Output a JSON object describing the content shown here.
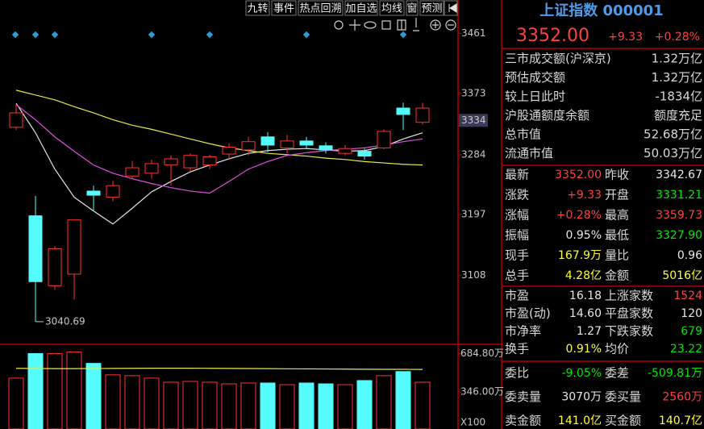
{
  "toolbar": {
    "buttons": [
      "九转",
      "事件",
      "热点回溯",
      "加自选",
      "均线",
      "窗",
      "预测"
    ]
  },
  "chart_data": {
    "type": "candlestick",
    "open": [
      3324,
      3195,
      3093,
      3110,
      3231,
      3222,
      3253,
      3257,
      3269,
      3265,
      3269,
      3285,
      3291,
      3310,
      3294,
      3304,
      3297,
      3286,
      3289,
      3294,
      3352,
      3331.21
    ],
    "high": [
      3357,
      3224,
      3151,
      3189,
      3239,
      3246,
      3275,
      3277,
      3283,
      3286,
      3284,
      3301,
      3310,
      3317,
      3313,
      3310,
      3302,
      3298,
      3293,
      3321,
      3360,
      3359.73
    ],
    "low": [
      3320,
      3040.69,
      3087,
      3073,
      3202,
      3216,
      3249,
      3249,
      3239,
      3260,
      3263,
      3278,
      3283,
      3288,
      3286,
      3292,
      3286,
      3283,
      3277,
      3292,
      3320,
      3327.9
    ],
    "close": [
      3345,
      3099,
      3147,
      3189,
      3225,
      3239,
      3265,
      3271,
      3278,
      3283,
      3281,
      3295,
      3303,
      3298,
      3304,
      3298,
      3291,
      3293,
      3282,
      3318,
      3342.67,
      3352.0
    ],
    "up_color": "#ff3232",
    "down_color": "#54fcfc",
    "ylim": [
      3010,
      3486
    ],
    "yticks": [
      3108,
      3197,
      3284,
      3373,
      3461
    ],
    "current_marker": 3334,
    "ma_series": [
      {
        "color": "#e8e8e8",
        "values": [
          3359,
          3316,
          3263,
          3222,
          3202,
          3183,
          3206,
          3230,
          3245,
          3259,
          3269,
          3278,
          3286,
          3290,
          3292,
          3293,
          3291,
          3289,
          3290,
          3296,
          3307,
          3316
        ]
      },
      {
        "color": "#e8e850",
        "values": [
          3378,
          3371,
          3364,
          3354,
          3345,
          3335,
          3327,
          3321,
          3314,
          3307,
          3300,
          3294,
          3290,
          3286,
          3284,
          3282,
          3279,
          3277,
          3274,
          3272,
          3270,
          3269
        ]
      },
      {
        "color": "#e050e0",
        "values": [
          3357,
          3335,
          3310,
          3289,
          3269,
          3257,
          3249,
          3242,
          3236,
          3231,
          3228,
          3245,
          3263,
          3274,
          3283,
          3287,
          3290,
          3292,
          3294,
          3298,
          3303,
          3307
        ]
      }
    ],
    "volume": {
      "ylim": [
        20,
        745
      ],
      "yticks": [
        {
          "value": 346.0,
          "label": "346.00万"
        },
        {
          "value": 684.8,
          "label": "684.80万"
        }
      ],
      "unit_label": "X100",
      "values": [
        468.5,
        684.8,
        684.8,
        699.2,
        598.3,
        497.4,
        490.2,
        468.5,
        432.5,
        439.7,
        432.5,
        418.1,
        425.3,
        425.3,
        410.9,
        425.3,
        418.1,
        410.9,
        446.9,
        490.2,
        526.2,
        432.5
      ],
      "ma_color": "#e8e850",
      "ma_values": [
        555,
        553,
        552,
        552,
        553,
        554,
        555,
        556,
        556,
        556,
        555,
        554,
        553,
        552,
        551,
        550,
        549,
        548,
        547,
        546,
        546,
        545
      ]
    }
  },
  "quote_panel": {
    "title": "上证指数 000001",
    "price": "3352.00",
    "change": "+9.33",
    "change_pct": "+0.28%",
    "summary": [
      {
        "label": "三市成交额(沪深京)",
        "value": "1.32万亿",
        "color": "#e8e8e8"
      },
      {
        "label": "预估成交额",
        "value": "1.32万亿",
        "color": "#e8e8e8"
      },
      {
        "label": "较上日此时",
        "value": "-1834亿",
        "color": "#00e600"
      },
      {
        "label": "沪股通额度余额",
        "value": "额度充足",
        "color": "#e8e8e8"
      },
      {
        "label": "总市值",
        "value": "52.68万亿",
        "color": "#e8e8e8"
      },
      {
        "label": "流通市值",
        "value": "50.03万亿",
        "color": "#e8e8e8"
      }
    ],
    "stats": [
      [
        [
          {
            "label": "最新",
            "value": "3352.00",
            "color": "#ff4040"
          },
          {
            "label": "昨收",
            "value": "3342.67",
            "color": "#e8e8e8"
          }
        ],
        [
          {
            "label": "涨跌",
            "value": "+9.33",
            "color": "#ff4040"
          },
          {
            "label": "开盘",
            "value": "3331.21",
            "color": "#00e600"
          }
        ],
        [
          {
            "label": "涨幅",
            "value": "+0.28%",
            "color": "#ff4040"
          },
          {
            "label": "最高",
            "value": "3359.73",
            "color": "#ff4040"
          }
        ],
        [
          {
            "label": "振幅",
            "value": "0.95%",
            "color": "#e8e8e8"
          },
          {
            "label": "最低",
            "value": "3327.90",
            "color": "#00e600"
          }
        ],
        [
          {
            "label": "现手",
            "value": "167.9万",
            "color": "#ffff40"
          },
          {
            "label": "量比",
            "value": "0.96",
            "color": "#e8e8e8"
          }
        ],
        [
          {
            "label": "总手",
            "value": "4.28亿",
            "color": "#ffff40"
          },
          {
            "label": "金额",
            "value": "5016亿",
            "color": "#ffff40"
          }
        ]
      ],
      [
        [
          {
            "label": "市盈",
            "value": "16.18",
            "color": "#e8e8e8"
          },
          {
            "label": "上涨家数",
            "value": "1524",
            "color": "#ff4040"
          }
        ],
        [
          {
            "label": "市盈(动)",
            "value": "14.60",
            "color": "#e8e8e8"
          },
          {
            "label": "平盘家数",
            "value": "120",
            "color": "#e8e8e8"
          }
        ],
        [
          {
            "label": "市净率",
            "value": "1.27",
            "color": "#e8e8e8"
          },
          {
            "label": "下跌家数",
            "value": "679",
            "color": "#00e600"
          }
        ],
        [
          {
            "label": "换手",
            "value": "0.91%",
            "color": "#ffff40"
          },
          {
            "label": "均价",
            "value": "23.22",
            "color": "#00e600"
          }
        ]
      ],
      [
        [
          {
            "label": "委比",
            "value": "-9.05%",
            "color": "#00e600"
          },
          {
            "label": "委差",
            "value": "-509.81万",
            "color": "#00e600"
          }
        ],
        [
          {
            "label": "委卖量",
            "value": "3070万",
            "color": "#e8e8e8"
          },
          {
            "label": "委买量",
            "value": "2560万",
            "color": "#ff4040"
          }
        ],
        [
          {
            "label": "卖金额",
            "value": "141.0亿",
            "color": "#ffff40"
          },
          {
            "label": "买金额",
            "value": "140.7亿",
            "color": "#ffff40"
          }
        ]
      ]
    ]
  }
}
